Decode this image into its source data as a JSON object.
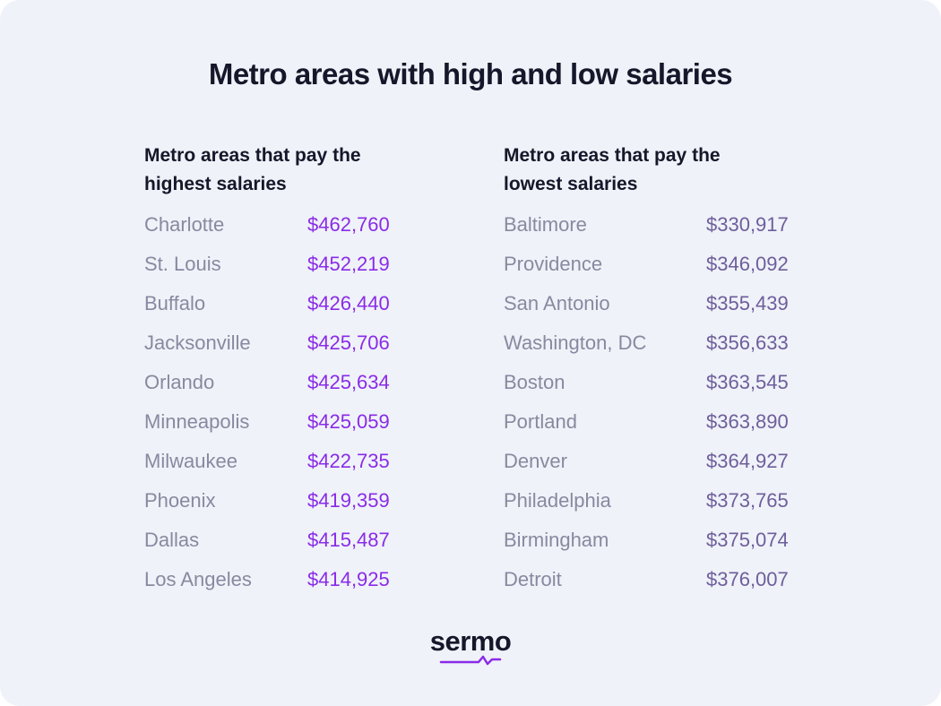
{
  "title": "Metro areas with high and low salaries",
  "tables": [
    {
      "heading": [
        "Metro areas that pay the",
        "highest salaries"
      ],
      "rows": [
        [
          "Charlotte",
          "$462,760"
        ],
        [
          "St. Louis",
          "$452,219"
        ],
        [
          "Buffalo",
          "$426,440"
        ],
        [
          "Jacksonville",
          "$425,706"
        ],
        [
          "Orlando",
          "$425,634"
        ],
        [
          "Minneapolis",
          "$425,059"
        ],
        [
          "Milwaukee",
          "$422,735"
        ],
        [
          "Phoenix",
          "$419,359"
        ],
        [
          "Dallas",
          "$415,487"
        ],
        [
          "Los Angeles",
          "$414,925"
        ]
      ]
    },
    {
      "heading": [
        "Metro areas that pay the",
        "lowest salaries"
      ],
      "rows": [
        [
          "Baltimore",
          "$330,917"
        ],
        [
          "Providence",
          "$346,092"
        ],
        [
          "San Antonio",
          "$355,439"
        ],
        [
          "Washington, DC",
          "$356,633"
        ],
        [
          "Boston",
          "$363,545"
        ],
        [
          "Portland",
          "$363,890"
        ],
        [
          "Denver",
          "$364,927"
        ],
        [
          "Philadelphia",
          "$373,765"
        ],
        [
          "Birmingham",
          "$375,074"
        ],
        [
          "Detroit",
          "$376,007"
        ]
      ]
    }
  ],
  "logo": "sermo"
}
